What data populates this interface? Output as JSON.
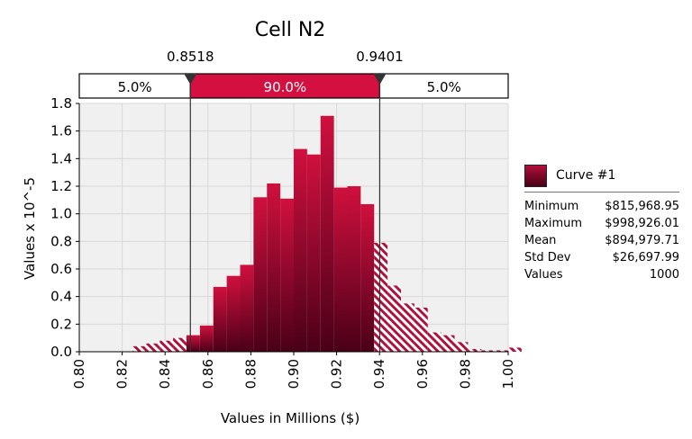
{
  "chart_data": {
    "type": "bar",
    "title": "Cell N2",
    "xlabel": "Values in Millions ($)",
    "ylabel": "Values x 10^-5",
    "xlim": [
      0.8,
      1.0
    ],
    "ylim": [
      0,
      1.8
    ],
    "x_ticks": [
      "0.80",
      "0.82",
      "0.84",
      "0.86",
      "0.88",
      "0.90",
      "0.92",
      "0.94",
      "0.96",
      "0.98",
      "1.00"
    ],
    "y_ticks": [
      "0.0",
      "0.2",
      "0.4",
      "0.6",
      "0.8",
      "1.0",
      "1.2",
      "1.4",
      "1.6",
      "1.8"
    ],
    "grid": true,
    "bin_width": 0.00625,
    "bin_start": 0.8,
    "values": [
      0,
      0,
      0,
      0,
      0.04,
      0.06,
      0.08,
      0.1,
      0.12,
      0.19,
      0.47,
      0.55,
      0.63,
      1.12,
      1.22,
      1.11,
      1.47,
      1.43,
      1.71,
      1.19,
      1.2,
      1.07,
      0.79,
      0.48,
      0.35,
      0.32,
      0.14,
      0.12,
      0.07,
      0.02,
      0.01,
      0.01,
      0.03
    ],
    "markers": [
      {
        "value": 0.8518,
        "label": "0.8518"
      },
      {
        "value": 0.9401,
        "label": "0.9401"
      }
    ],
    "percent_bands": [
      {
        "label": "5.0%",
        "highlight": false
      },
      {
        "label": "90.0%",
        "highlight": true
      },
      {
        "label": "5.0%",
        "highlight": false
      }
    ],
    "series": [
      {
        "name": "Curve #1",
        "color": "#b0103a"
      }
    ]
  },
  "stats": [
    {
      "label": "Minimum",
      "value": "$815,968.95"
    },
    {
      "label": "Maximum",
      "value": "$998,926.01"
    },
    {
      "label": "Mean",
      "value": "$894,979.71"
    },
    {
      "label": "Std Dev",
      "value": "$26,697.99"
    },
    {
      "label": "Values",
      "value": "1000"
    }
  ],
  "colors": {
    "bar_top": "#d0103e",
    "bar_bottom": "#4a0018",
    "band_highlight": "#d41040",
    "plot_bg": "#f0f0f0",
    "grid": "#d8d8d8",
    "hatch": "#b0103a"
  }
}
